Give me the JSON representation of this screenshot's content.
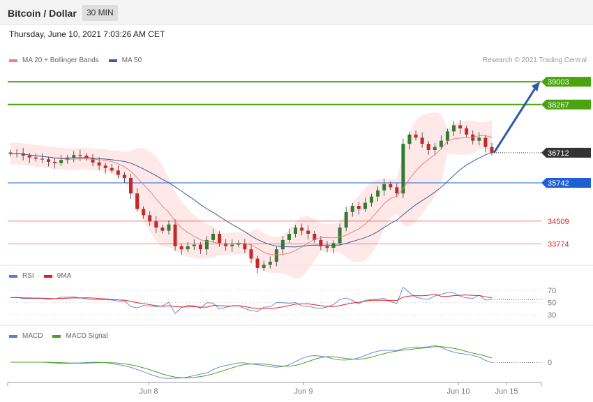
{
  "header": {
    "title": "Bitcoin / Dollar",
    "timeframe": "30 MIN"
  },
  "timestamp": "Thursday, June 10, 2021 7:03:26 AM CET",
  "legends": {
    "price": [
      {
        "label": "MA 20 + Bollinger Bands",
        "color": "#f08080"
      },
      {
        "label": "MA 50",
        "color": "#3a5d9c"
      }
    ],
    "rsi": [
      {
        "label": "RSI",
        "color": "#5a7fd8"
      },
      {
        "label": "9MA",
        "color": "#e02020"
      }
    ],
    "macd": [
      {
        "label": "MACD",
        "color": "#5a7fd8"
      },
      {
        "label": "MACD Signal",
        "color": "#4aa020"
      }
    ]
  },
  "credit": "Research © 2021 Trading Central",
  "colors": {
    "up": "#2e7d32",
    "down": "#c62828",
    "green_level": "#4aa30f",
    "blue_level": "#1f5fd6",
    "red_level": "#e02020",
    "last": "#333333",
    "band_fill": "#fde0e0"
  },
  "chart_data": {
    "type": "candlestick",
    "y_range": [
      33200,
      39500
    ],
    "levels": [
      {
        "value": "39003",
        "kind": "target"
      },
      {
        "value": "38267",
        "kind": "target"
      },
      {
        "value": "36712",
        "kind": "last"
      },
      {
        "value": "35742",
        "kind": "pivot"
      },
      {
        "value": "34509",
        "kind": "support"
      },
      {
        "value": "33774",
        "kind": "support"
      }
    ],
    "x_ticks": [
      "Jun 8",
      "Jun 9",
      "Jun 10",
      "Jun 15"
    ],
    "rsi": {
      "ticks": [
        "70",
        "50",
        "30"
      ]
    },
    "macd": {
      "ticks": [
        "0"
      ]
    },
    "closes": [
      36680,
      36700,
      36620,
      36560,
      36520,
      36500,
      36420,
      36380,
      36480,
      36560,
      36640,
      36620,
      36540,
      36400,
      36300,
      36220,
      36140,
      36000,
      35900,
      35400,
      34900,
      34700,
      34500,
      34300,
      34200,
      34400,
      33700,
      33600,
      33700,
      33750,
      33600,
      33900,
      34100,
      33800,
      33700,
      33750,
      33800,
      33600,
      33300,
      33000,
      33100,
      33200,
      33600,
      33900,
      34100,
      34300,
      34200,
      34100,
      33900,
      33700,
      33650,
      33800,
      34300,
      34800,
      35000,
      34900,
      35100,
      35300,
      35500,
      35700,
      35600,
      35400,
      37000,
      37300,
      37200,
      37000,
      36800,
      36900,
      37100,
      37400,
      37600,
      37500,
      37300,
      37100,
      37200,
      36900,
      36712
    ]
  }
}
